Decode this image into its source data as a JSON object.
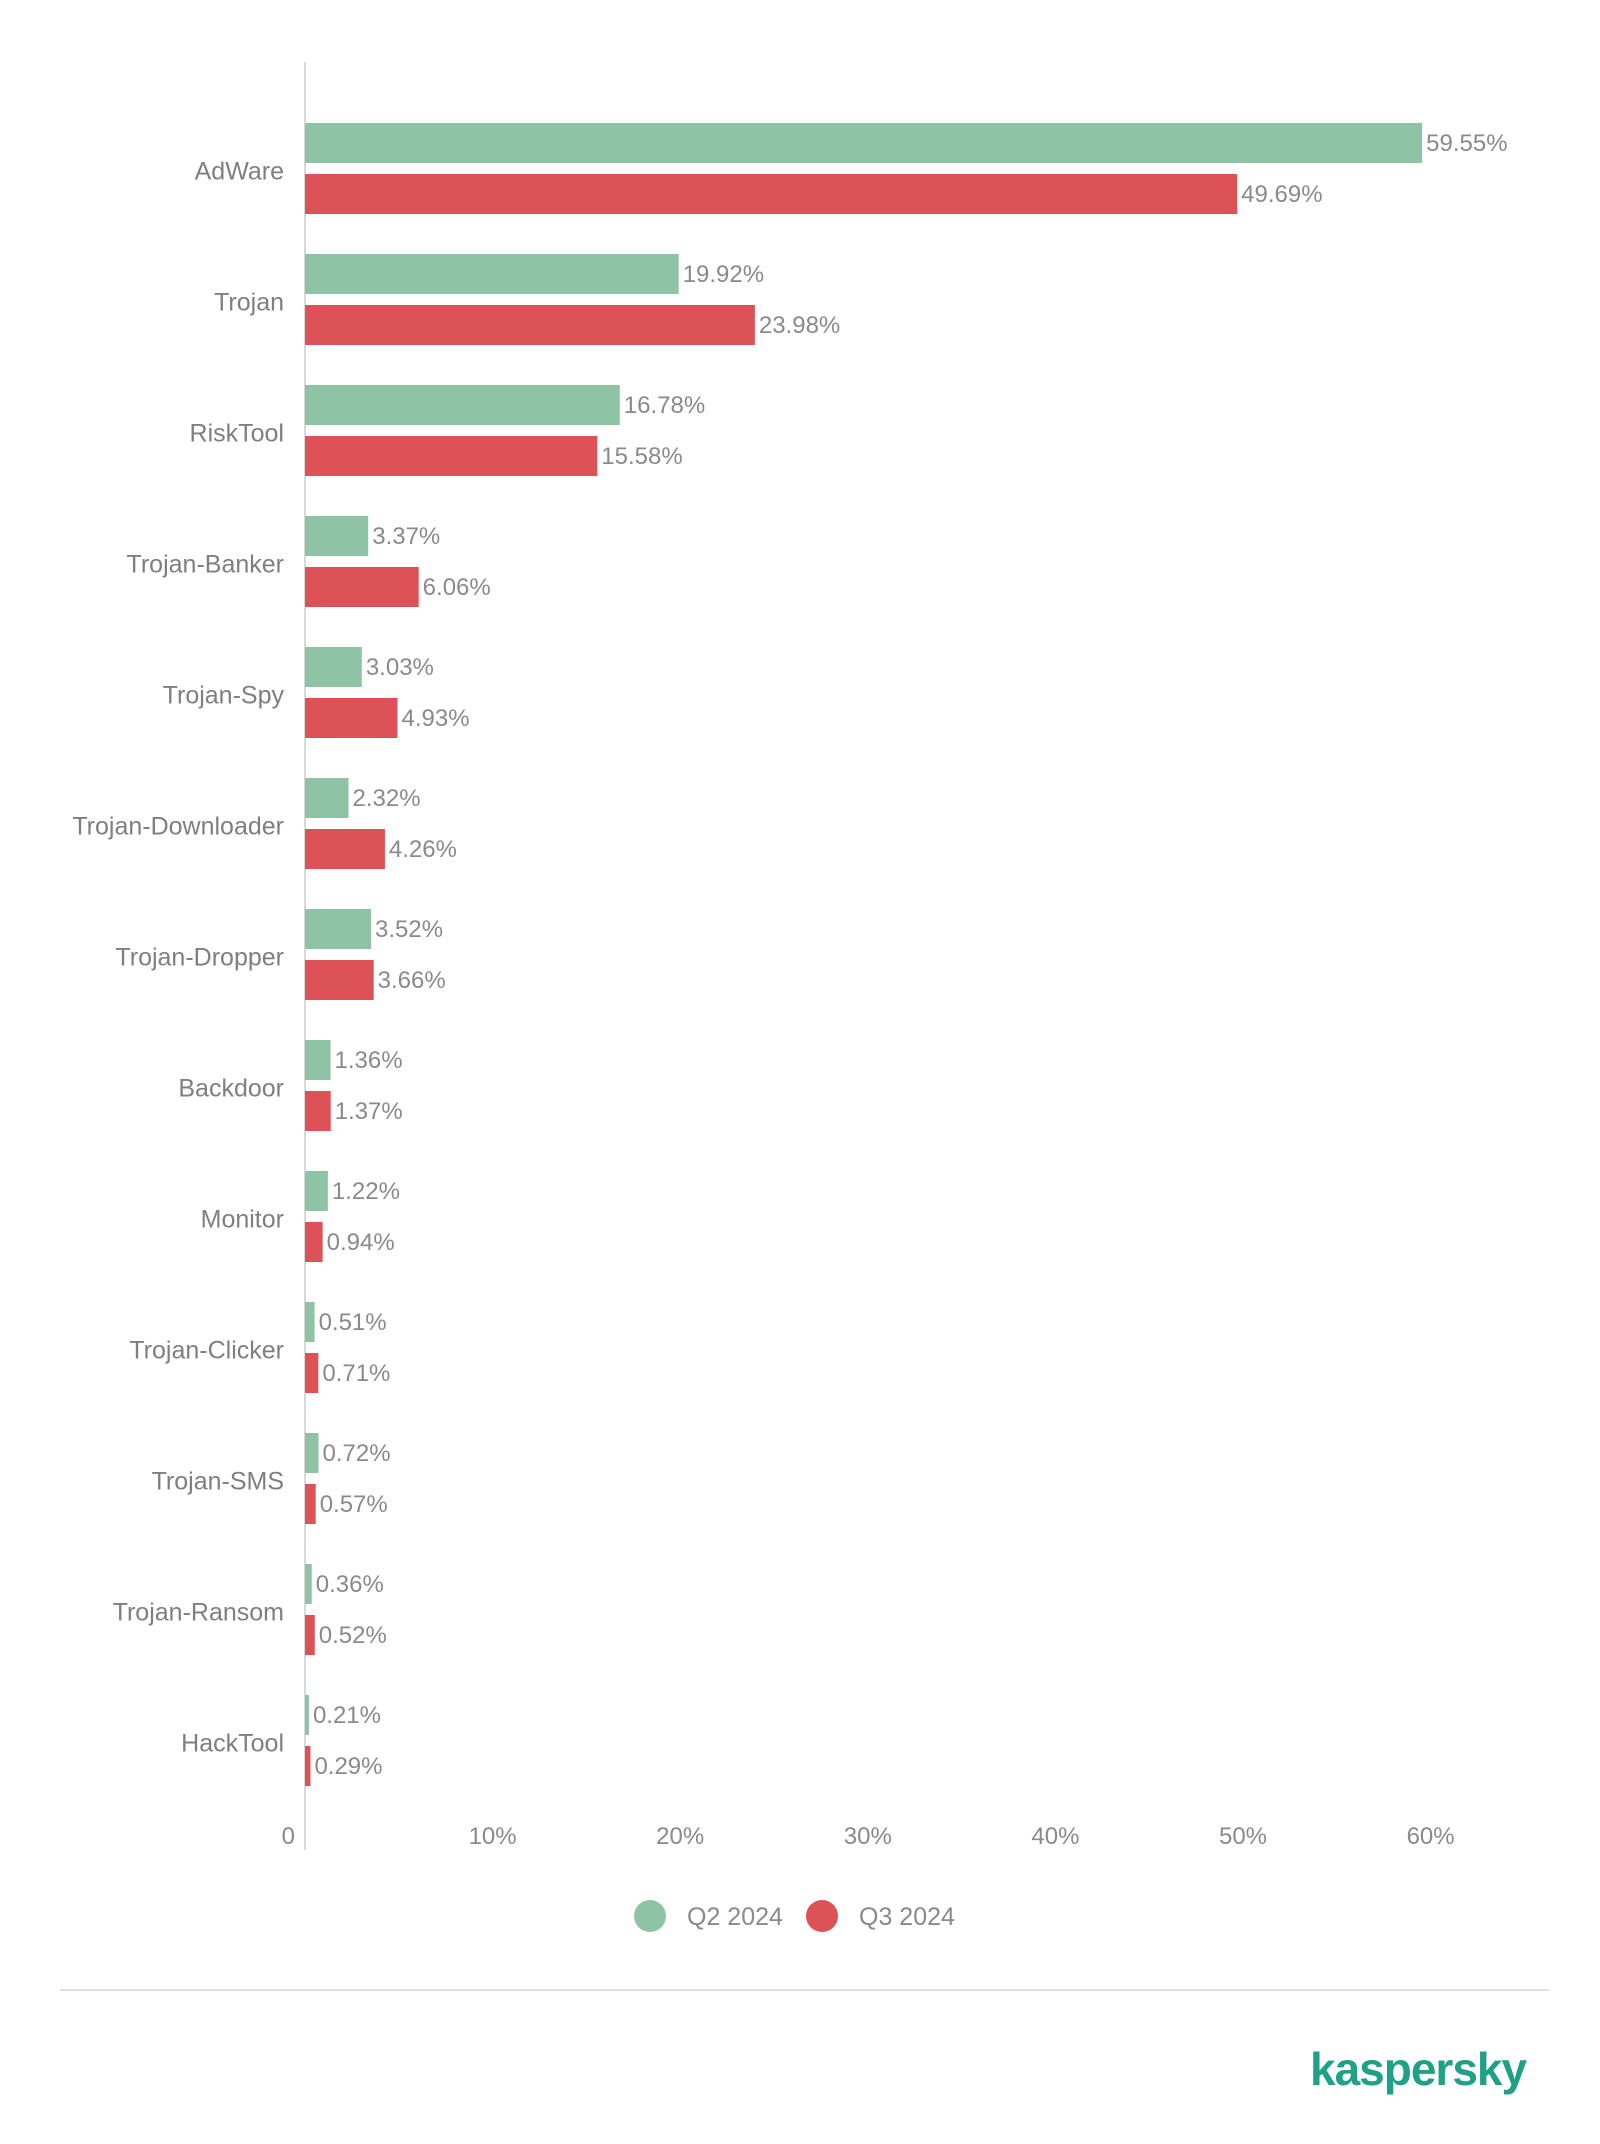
{
  "chart_data": {
    "type": "bar",
    "orientation": "horizontal",
    "categories": [
      "AdWare",
      "Trojan",
      "RiskTool",
      "Trojan-Banker",
      "Trojan-Spy",
      "Trojan-Downloader",
      "Trojan-Dropper",
      "Backdoor",
      "Monitor",
      "Trojan-Clicker",
      "Trojan-SMS",
      "Trojan-Ransom",
      "HackTool"
    ],
    "series": [
      {
        "name": "Q2 2024",
        "color": "#8fc3a6",
        "values": [
          59.55,
          19.92,
          16.78,
          3.37,
          3.03,
          2.32,
          3.52,
          1.36,
          1.22,
          0.51,
          0.72,
          0.36,
          0.21
        ],
        "labels": [
          "59.55%",
          "19.92%",
          "16.78%",
          "3.37%",
          "3.03%",
          "2.32%",
          "3.52%",
          "1.36%",
          "1.22%",
          "0.51%",
          "0.72%",
          "0.36%",
          "0.21%"
        ]
      },
      {
        "name": "Q3 2024",
        "color": "#dd5257",
        "values": [
          49.69,
          23.98,
          15.58,
          6.06,
          4.93,
          4.26,
          3.66,
          1.37,
          0.94,
          0.71,
          0.57,
          0.52,
          0.29
        ],
        "labels": [
          "49.69%",
          "23.98%",
          "15.58%",
          "6.06%",
          "4.93%",
          "4.26%",
          "3.66%",
          "1.37%",
          "0.94%",
          "0.71%",
          "0.57%",
          "0.52%",
          "0.29%"
        ]
      }
    ],
    "x_ticks": [
      0,
      10,
      20,
      30,
      40,
      50,
      60
    ],
    "x_tick_labels": [
      "0",
      "10%",
      "20%",
      "30%",
      "40%",
      "50%",
      "60%"
    ],
    "xlim": [
      0,
      65
    ],
    "grid": false,
    "legend_position": "bottom-center"
  },
  "brand": {
    "logo_text": "kaspersky",
    "color": "#1fa187"
  }
}
